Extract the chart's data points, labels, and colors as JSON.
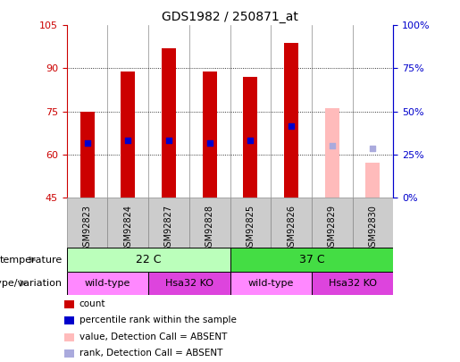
{
  "title": "GDS1982 / 250871_at",
  "samples": [
    "GSM92823",
    "GSM92824",
    "GSM92827",
    "GSM92828",
    "GSM92825",
    "GSM92826",
    "GSM92829",
    "GSM92830"
  ],
  "count_values": [
    75,
    89,
    97,
    89,
    87,
    99,
    null,
    null
  ],
  "count_bottom": [
    45,
    45,
    45,
    45,
    45,
    45,
    null,
    null
  ],
  "absent_value_top": [
    null,
    null,
    null,
    null,
    null,
    null,
    76,
    57
  ],
  "absent_value_bottom": [
    null,
    null,
    null,
    null,
    null,
    null,
    45,
    45
  ],
  "percentile_rank": [
    64,
    65,
    65,
    64,
    65,
    70,
    null,
    null
  ],
  "absent_rank": [
    null,
    null,
    null,
    null,
    null,
    null,
    63,
    62
  ],
  "ylim": [
    45,
    105
  ],
  "yticks_left": [
    45,
    60,
    75,
    90,
    105
  ],
  "yticks_right": [
    0,
    25,
    50,
    75,
    100
  ],
  "ylabel_left_color": "#cc0000",
  "ylabel_right_color": "#0000cc",
  "bar_width": 0.35,
  "count_color": "#cc0000",
  "absent_color": "#ffbbbb",
  "rank_color": "#0000cc",
  "absent_rank_color": "#aaaadd",
  "temp_colors": {
    "22 C": "#bbffbb",
    "37 C": "#44dd44"
  },
  "geno_colors": {
    "wild-type": "#ff88ff",
    "Hsa32 KO": "#dd44dd"
  },
  "temperature_groups": [
    {
      "label": "22 C",
      "start": 0,
      "end": 4
    },
    {
      "label": "37 C",
      "start": 4,
      "end": 8
    }
  ],
  "genotype_groups": [
    {
      "label": "wild-type",
      "start": 0,
      "end": 2
    },
    {
      "label": "Hsa32 KO",
      "start": 2,
      "end": 4
    },
    {
      "label": "wild-type",
      "start": 4,
      "end": 6
    },
    {
      "label": "Hsa32 KO",
      "start": 6,
      "end": 8
    }
  ],
  "legend_items": [
    {
      "label": "count",
      "color": "#cc0000"
    },
    {
      "label": "percentile rank within the sample",
      "color": "#0000cc"
    },
    {
      "label": "value, Detection Call = ABSENT",
      "color": "#ffbbbb"
    },
    {
      "label": "rank, Detection Call = ABSENT",
      "color": "#aaaadd"
    }
  ],
  "grid_yticks": [
    60,
    75,
    90
  ],
  "dot_size": 18,
  "col_bg": "#cccccc",
  "col_sep": "#888888"
}
